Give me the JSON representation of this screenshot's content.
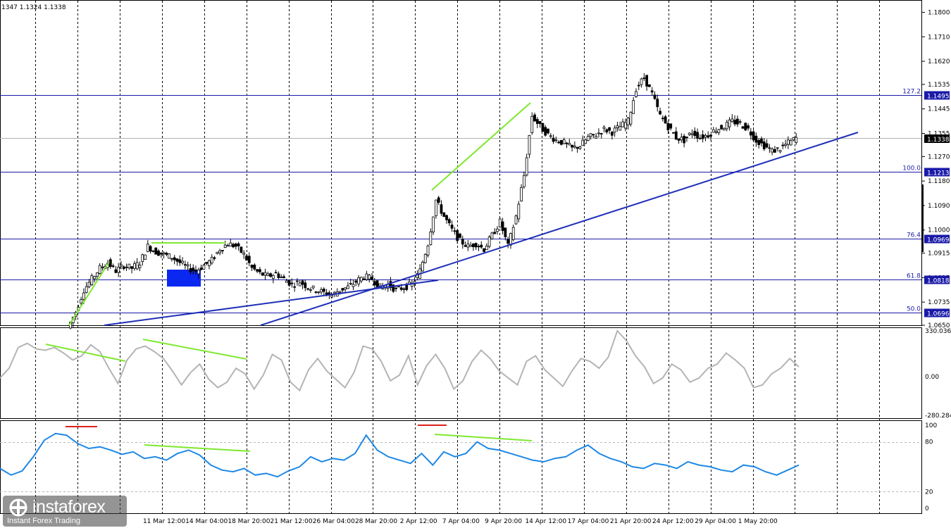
{
  "header": {
    "ohlc_text": "1347 1.1324 1.1338"
  },
  "colors": {
    "price_line": "#000000",
    "fib_line": "#1a1aa8",
    "trend_line": "#1f2fb8",
    "divergence": "#7fe830",
    "cci_line": "#b4b4b4",
    "rsi_line": "#1e88e5",
    "overbought_mark": "#e0201a",
    "zone_box": "#0a28f0"
  },
  "chart_data": [
    {
      "type": "candlestick",
      "title": "",
      "xlabel": "",
      "ylabel": "",
      "ylim": [
        1.065,
        1.184
      ],
      "y_ticks": [
        "1.1800",
        "1.1710",
        "1.1620",
        "1.1535",
        "1.1445",
        "1.1355",
        "1.1270",
        "1.1180",
        "1.1090",
        "1.1000",
        "1.0915",
        "1.0825",
        "1.0735",
        "1.0650"
      ],
      "x_ticks": [
        "11 Mar 12:00",
        "14 Mar 04:00",
        "18 Mar 20:00",
        "21 Mar 12:00",
        "26 Mar 04:00",
        "28 Mar 20:00",
        "2 Apr 12:00",
        "7 Apr 04:00",
        "9 Apr 20:00",
        "14 Apr 12:00",
        "17 Apr 04:00",
        "21 Apr 20:00",
        "24 Apr 12:00",
        "29 Apr 04:00",
        "1 May 20:00"
      ],
      "current_price": 1.1338,
      "fibonacci_levels": [
        {
          "label": "127.2",
          "value": 1.1495,
          "value_text": "1.1495"
        },
        {
          "label": "100.0",
          "value": 1.1213,
          "value_text": "1.1213"
        },
        {
          "label": "76.4",
          "value": 1.0969,
          "value_text": "1.0969"
        },
        {
          "label": "61.8",
          "value": 1.0818,
          "value_text": "1.0818"
        },
        {
          "label": "50.0",
          "value": 1.0696,
          "value_text": "1.0696"
        }
      ],
      "current_price_text": "1.1338",
      "close_series_approx": [
        1.064,
        1.07,
        1.078,
        1.082,
        1.086,
        1.088,
        1.085,
        1.087,
        1.086,
        1.088,
        1.094,
        1.092,
        1.091,
        1.09,
        1.088,
        1.086,
        1.085,
        1.087,
        1.089,
        1.093,
        1.095,
        1.094,
        1.091,
        1.086,
        1.084,
        1.083,
        1.084,
        1.082,
        1.08,
        1.081,
        1.079,
        1.078,
        1.077,
        1.076,
        1.078,
        1.079,
        1.081,
        1.083,
        1.082,
        1.079,
        1.08,
        1.078,
        1.079,
        1.08,
        1.085,
        1.095,
        1.111,
        1.105,
        1.1,
        1.096,
        1.094,
        1.095,
        1.093,
        1.098,
        1.103,
        1.094,
        1.105,
        1.12,
        1.142,
        1.138,
        1.135,
        1.133,
        1.132,
        1.13,
        1.131,
        1.134,
        1.135,
        1.137,
        1.136,
        1.138,
        1.14,
        1.152,
        1.156,
        1.15,
        1.142,
        1.138,
        1.134,
        1.133,
        1.136,
        1.134,
        1.135,
        1.137,
        1.138,
        1.14,
        1.139,
        1.137,
        1.133,
        1.131,
        1.129,
        1.13,
        1.132,
        1.1338
      ]
    },
    {
      "type": "line",
      "title": "",
      "series": [
        {
          "values": [
            -10,
            60,
            210,
            240,
            200,
            190,
            210,
            170,
            120,
            150,
            230,
            180,
            60,
            -50,
            120,
            200,
            220,
            180,
            130,
            40,
            -60,
            30,
            90,
            -20,
            -80,
            -40,
            60,
            20,
            -90,
            10,
            160,
            120,
            -40,
            -100,
            50,
            130,
            40,
            -20,
            -80,
            30,
            220,
            200,
            110,
            -30,
            10,
            150,
            -60,
            80,
            160,
            60,
            -90,
            -30,
            110,
            190,
            130,
            40,
            -10,
            -60,
            110,
            150,
            50,
            -10,
            -70,
            40,
            130,
            110,
            60,
            140,
            330,
            260,
            150,
            70,
            -50,
            -10,
            90,
            50,
            -40,
            -10,
            60,
            90,
            170,
            120,
            60,
            -80,
            -60,
            20,
            60,
            130,
            70
          ]
        }
      ],
      "ylim": [
        -280.2849,
        330.0361
      ],
      "y_ticks": [
        "330.0361",
        "0.00",
        "-280.2849"
      ]
    },
    {
      "type": "line",
      "title": "",
      "series": [
        {
          "values": [
            48,
            40,
            45,
            62,
            82,
            90,
            88,
            78,
            72,
            74,
            70,
            65,
            68,
            60,
            62,
            58,
            66,
            70,
            64,
            52,
            46,
            44,
            48,
            40,
            42,
            38,
            45,
            50,
            62,
            56,
            60,
            58,
            66,
            88,
            70,
            62,
            58,
            54,
            66,
            52,
            68,
            62,
            66,
            80,
            72,
            70,
            66,
            62,
            58,
            56,
            60,
            62,
            70,
            76,
            66,
            60,
            56,
            50,
            48,
            54,
            52,
            48,
            56,
            52,
            50,
            46,
            44,
            52,
            50,
            44,
            40,
            46,
            52
          ]
        }
      ],
      "ylim": [
        0,
        100
      ],
      "y_ticks": [
        "100",
        "80",
        "20",
        "0"
      ],
      "overbought": 80,
      "oversold": 20
    }
  ],
  "logo": {
    "brand": "instaforex",
    "tagline": "Instant Forex Trading"
  }
}
